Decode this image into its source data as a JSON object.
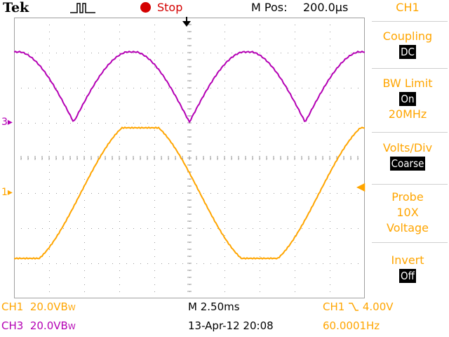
{
  "header": {
    "brand": "Tek",
    "status": "Stop",
    "mpos_label": "M Pos:",
    "mpos_value": "200.0µs"
  },
  "side_menu": {
    "channel": "CH1",
    "coupling_label": "Coupling",
    "coupling_value": "DC",
    "bw_label": "BW Limit",
    "bw_value": "On",
    "bw_freq": "20MHz",
    "vdiv_label": "Volts/Div",
    "vdiv_value": "Coarse",
    "probe_label": "Probe",
    "probe_value": "10X",
    "probe_type": "Voltage",
    "invert_label": "Invert",
    "invert_value": "Off"
  },
  "markers": {
    "ch3_ref": "3",
    "ch1_ref": "1"
  },
  "readouts": {
    "ch1_label": "CH1",
    "ch1_scale": "20.0V",
    "ch1_bw": "B",
    "ch1_bw_sub": "W",
    "ch3_label": "CH3",
    "ch3_scale": "20.0V",
    "ch3_bw": "B",
    "ch3_bw_sub": "W",
    "timebase": "M 2.50ms",
    "datetime": "13-Apr-12 20:08",
    "trigger_source": "CH1",
    "trigger_level": "4.00V",
    "frequency": "60.0001Hz"
  },
  "colors": {
    "ch1": "#ffa500",
    "ch3": "#b400b4",
    "stop": "#d40000"
  }
}
